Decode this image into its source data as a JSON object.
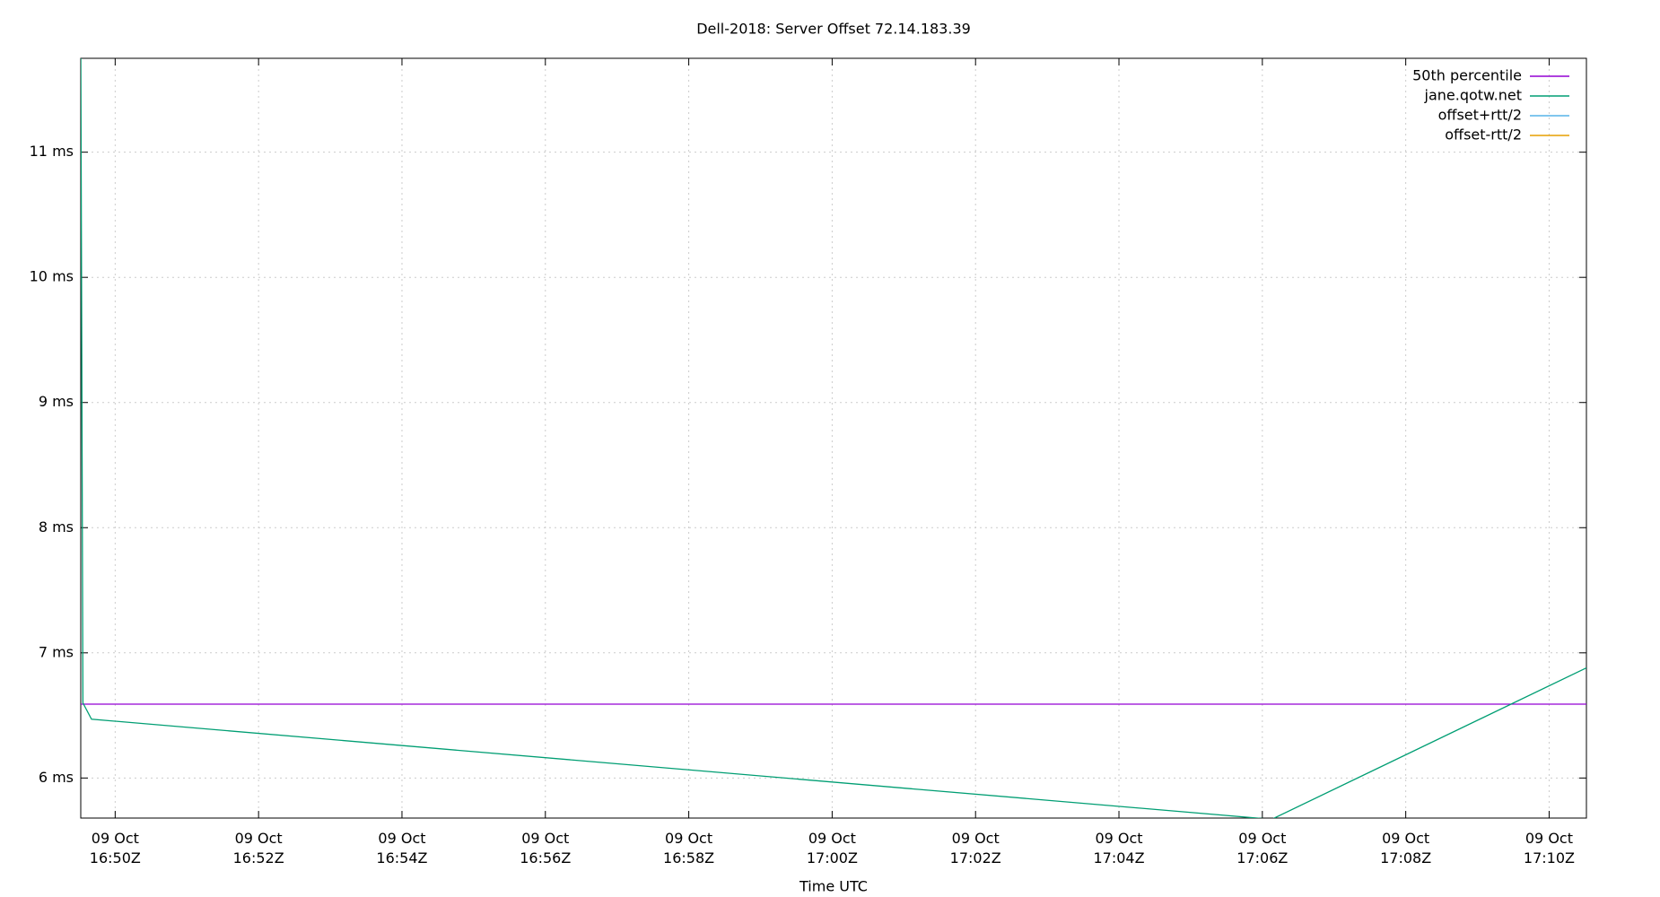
{
  "chart_data": {
    "type": "line",
    "title": "Dell-2018: Server Offset 72.14.183.39",
    "x_label": "Time UTC",
    "xlim": [
      1009.52,
      1030.52
    ],
    "ylim": [
      5.68,
      11.75
    ],
    "xticks": [
      {
        "value": 1010,
        "label": "09 Oct\n16:50Z"
      },
      {
        "value": 1012,
        "label": "09 Oct\n16:52Z"
      },
      {
        "value": 1014,
        "label": "09 Oct\n16:54Z"
      },
      {
        "value": 1016,
        "label": "09 Oct\n16:56Z"
      },
      {
        "value": 1018,
        "label": "09 Oct\n16:58Z"
      },
      {
        "value": 1020,
        "label": "09 Oct\n17:00Z"
      },
      {
        "value": 1022,
        "label": "09 Oct\n17:02Z"
      },
      {
        "value": 1024,
        "label": "09 Oct\n17:04Z"
      },
      {
        "value": 1026,
        "label": "09 Oct\n17:06Z"
      },
      {
        "value": 1028,
        "label": "09 Oct\n17:08Z"
      },
      {
        "value": 1030,
        "label": "09 Oct\n17:10Z"
      }
    ],
    "yticks": [
      {
        "value": 6,
        "label": "6 ms"
      },
      {
        "value": 7,
        "label": "7 ms"
      },
      {
        "value": 8,
        "label": "8 ms"
      },
      {
        "value": 9,
        "label": "9 ms"
      },
      {
        "value": 10,
        "label": "10 ms"
      },
      {
        "value": 11,
        "label": "11 ms"
      }
    ],
    "grid": true,
    "legend": "top-right",
    "series": [
      {
        "name": "50th percentile",
        "color": "#9400d3",
        "x": [
          1009.52,
          1030.52
        ],
        "values": [
          6.59,
          6.59
        ]
      },
      {
        "name": "jane.qotw.net",
        "color": "#009e73",
        "x": [
          1009.52,
          1009.55,
          1009.67,
          1026.13,
          1030.52
        ],
        "values": [
          11.9,
          6.6,
          6.47,
          5.67,
          6.88
        ]
      },
      {
        "name": "offset+rtt/2",
        "color": "#56b4e9",
        "x": [],
        "values": []
      },
      {
        "name": "offset-rtt/2",
        "color": "#e69f00",
        "x": [],
        "values": []
      }
    ]
  }
}
